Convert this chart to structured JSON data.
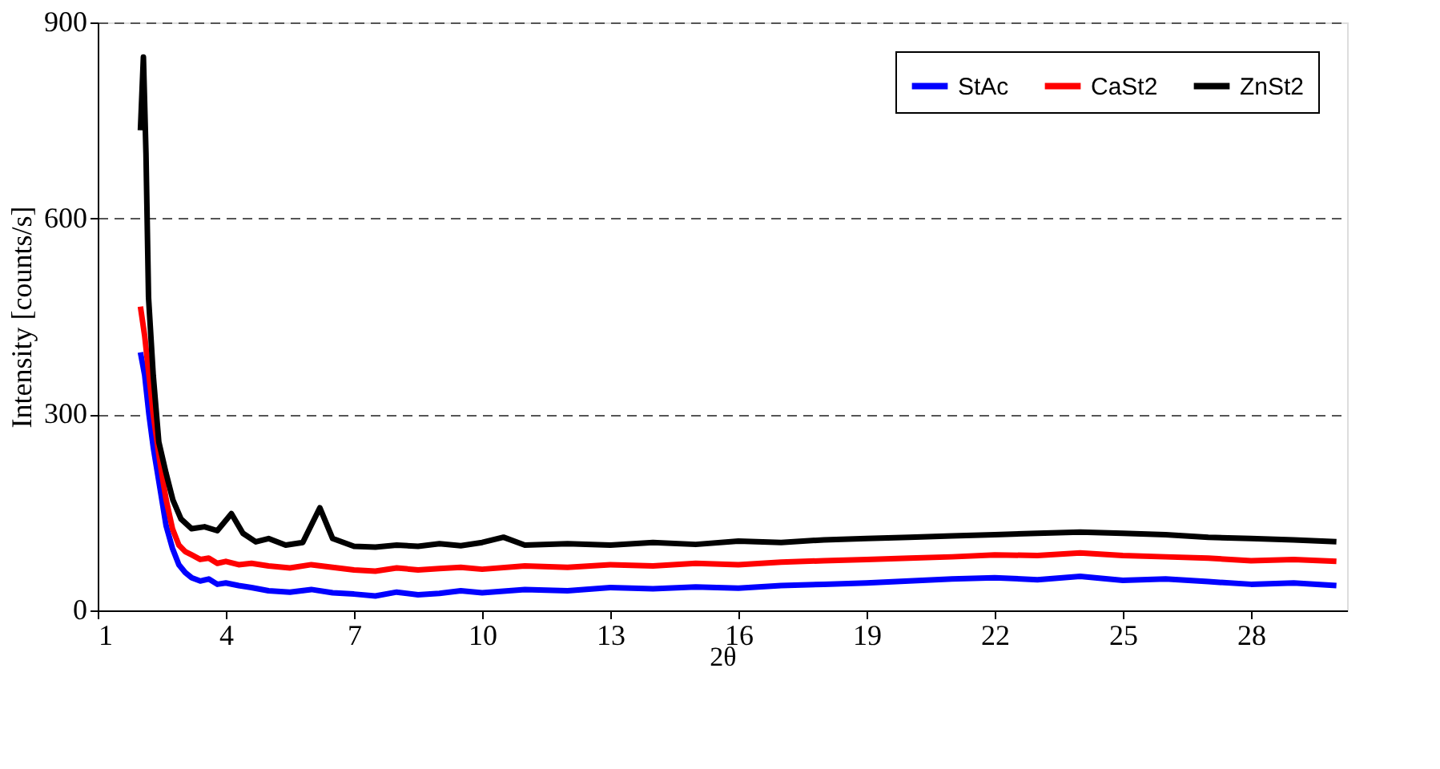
{
  "chart_data": {
    "type": "line",
    "xlabel": "2θ",
    "ylabel": "Intensity [counts/s]",
    "xlim": [
      1,
      30.25
    ],
    "xticks": [
      1,
      4,
      7,
      10,
      13,
      16,
      19,
      22,
      25,
      28
    ],
    "ylim": [
      0,
      900
    ],
    "yticks": [
      0,
      300,
      600,
      900
    ],
    "grid": "y",
    "legend": "top right",
    "line_style": "solid",
    "marker": "none",
    "series": [
      {
        "name": "StAc",
        "color": "#0000ff",
        "x": [
          2.0,
          2.1,
          2.2,
          2.3,
          2.45,
          2.6,
          2.75,
          2.9,
          3.05,
          3.2,
          3.4,
          3.6,
          3.8,
          4.0,
          4.3,
          4.6,
          5.0,
          5.5,
          6.0,
          6.5,
          7.0,
          7.5,
          8.0,
          8.5,
          9.0,
          9.5,
          10.0,
          11.0,
          12.0,
          13.0,
          14.0,
          15.0,
          16.0,
          17.0,
          18.0,
          19.0,
          20.0,
          21.0,
          22.0,
          23.0,
          24.0,
          25.0,
          26.0,
          27.0,
          28.0,
          29.0,
          30.0
        ],
        "values": [
          395,
          360,
          300,
          250,
          190,
          130,
          95,
          70,
          58,
          50,
          45,
          48,
          40,
          42,
          38,
          35,
          30,
          28,
          32,
          27,
          25,
          22,
          28,
          24,
          26,
          30,
          27,
          32,
          30,
          35,
          33,
          36,
          34,
          38,
          40,
          42,
          45,
          48,
          50,
          47,
          52,
          46,
          48,
          44,
          40,
          42,
          38
        ]
      },
      {
        "name": "CaSt2",
        "color": "#ff0000",
        "x": [
          2.0,
          2.1,
          2.2,
          2.3,
          2.45,
          2.6,
          2.75,
          2.9,
          3.05,
          3.2,
          3.4,
          3.6,
          3.8,
          4.0,
          4.3,
          4.6,
          5.0,
          5.5,
          6.0,
          6.5,
          7.0,
          7.5,
          8.0,
          8.5,
          9.0,
          9.5,
          10.0,
          11.0,
          12.0,
          13.0,
          14.0,
          15.0,
          16.0,
          17.0,
          18.0,
          19.0,
          20.0,
          21.0,
          22.0,
          23.0,
          24.0,
          25.0,
          26.0,
          27.0,
          28.0,
          29.0,
          30.0
        ],
        "values": [
          465,
          420,
          360,
          300,
          230,
          170,
          125,
          100,
          90,
          85,
          78,
          80,
          72,
          75,
          70,
          72,
          68,
          65,
          70,
          66,
          62,
          60,
          65,
          62,
          64,
          66,
          63,
          68,
          66,
          70,
          68,
          72,
          70,
          74,
          76,
          78,
          80,
          82,
          85,
          84,
          88,
          84,
          82,
          80,
          76,
          78,
          75
        ]
      },
      {
        "name": "ZnSt2",
        "color": "#000000",
        "x": [
          2.0,
          2.07,
          2.13,
          2.19,
          2.3,
          2.43,
          2.6,
          2.76,
          2.95,
          3.2,
          3.5,
          3.8,
          4.13,
          4.4,
          4.7,
          5.0,
          5.4,
          5.8,
          6.2,
          6.5,
          7.0,
          7.5,
          8.0,
          8.5,
          9.0,
          9.5,
          10.0,
          10.5,
          11.0,
          12.0,
          13.0,
          14.0,
          15.0,
          16.0,
          17.0,
          18.0,
          19.0,
          20.0,
          21.0,
          22.0,
          23.0,
          24.0,
          25.0,
          26.0,
          27.0,
          28.0,
          29.0,
          30.0
        ],
        "values": [
          735,
          847,
          700,
          479,
          360,
          258,
          210,
          169,
          140,
          125,
          128,
          122,
          148,
          118,
          105,
          110,
          100,
          104,
          157,
          110,
          98,
          97,
          100,
          98,
          102,
          99,
          104,
          112,
          100,
          102,
          100,
          104,
          101,
          106,
          104,
          108,
          110,
          112,
          114,
          116,
          118,
          120,
          118,
          116,
          112,
          110,
          108,
          105
        ]
      }
    ]
  }
}
